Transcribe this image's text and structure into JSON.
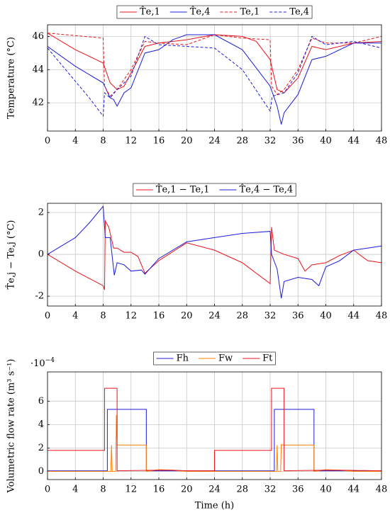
{
  "chart_data": [
    {
      "type": "line",
      "ylabel": "Temperature (°C)",
      "grid": true,
      "xlim": [
        0,
        48
      ],
      "xticks": [
        0,
        4,
        8,
        12,
        16,
        20,
        24,
        28,
        32,
        36,
        40,
        44,
        48
      ],
      "ylim": [
        40.3,
        46.7
      ],
      "yticks": [
        42,
        44,
        46
      ],
      "series": [
        {
          "name": "T̂e,1",
          "color": "#e8141c",
          "linestyle": "solid",
          "x": [
            0,
            4,
            8,
            9,
            10,
            11,
            12,
            14,
            16,
            20,
            24,
            28,
            30,
            32,
            33,
            34,
            36,
            38,
            40,
            44,
            48
          ],
          "values": [
            46.2,
            45.2,
            44.4,
            43.2,
            42.8,
            43.0,
            43.8,
            45.4,
            45.6,
            45.8,
            46.1,
            46.0,
            45.7,
            44.6,
            42.8,
            42.6,
            43.5,
            45.4,
            45.2,
            45.6,
            45.7
          ]
        },
        {
          "name": "T̂e,4",
          "color": "#1c1cdc",
          "linestyle": "solid",
          "x": [
            0,
            4,
            8,
            9,
            9.5,
            10,
            11,
            12,
            14,
            16,
            18,
            20,
            24,
            28,
            32,
            33,
            33.6,
            34,
            36,
            38,
            40,
            44,
            48
          ],
          "values": [
            45.4,
            44.2,
            43.2,
            42.3,
            42.2,
            41.8,
            42.6,
            42.9,
            45.0,
            45.2,
            45.8,
            46.1,
            46.1,
            45.2,
            43.0,
            41.8,
            40.7,
            41.4,
            42.5,
            44.6,
            44.8,
            45.6,
            45.6
          ]
        },
        {
          "name": "Te,1",
          "color": "#e8141c",
          "linestyle": "dashed",
          "x": [
            0,
            8,
            8.2,
            9,
            10,
            12,
            14,
            16,
            20,
            24,
            28,
            32,
            32.2,
            33,
            34,
            36,
            38,
            40,
            44,
            48
          ],
          "values": [
            46.2,
            45.9,
            43.0,
            42.4,
            42.8,
            44.0,
            45.7,
            45.6,
            45.5,
            46.1,
            45.9,
            45.8,
            43.0,
            42.5,
            42.8,
            44.0,
            45.9,
            45.6,
            45.6,
            46.0
          ]
        },
        {
          "name": "Te,4",
          "color": "#1c1cdc",
          "linestyle": "dashed",
          "x": [
            0,
            4,
            6,
            8,
            8.2,
            9,
            10,
            12,
            14,
            16,
            20,
            24,
            28,
            32,
            32.3,
            34,
            36,
            38,
            40,
            44,
            48
          ],
          "values": [
            45.3,
            43.3,
            42.3,
            41.2,
            42.6,
            42.3,
            42.8,
            43.6,
            46.0,
            45.5,
            45.4,
            45.3,
            44.0,
            41.5,
            42.4,
            42.6,
            43.8,
            46.0,
            45.5,
            45.7,
            45.3
          ]
        }
      ]
    },
    {
      "type": "line",
      "ylabel": "T̂e,j − Te,j (°C)",
      "grid": true,
      "xlim": [
        0,
        48
      ],
      "xticks": [
        0,
        4,
        8,
        12,
        16,
        20,
        24,
        28,
        32,
        36,
        40,
        44,
        48
      ],
      "ylim": [
        -2.47,
        2.44
      ],
      "yticks": [
        -2,
        0,
        2
      ],
      "series": [
        {
          "name": "T̂e,1 − Te,1",
          "color": "#e8141c",
          "linestyle": "solid",
          "x": [
            0,
            4,
            8,
            8.2,
            8.3,
            8.8,
            9.5,
            10,
            11,
            12,
            13,
            14,
            16,
            20,
            24,
            28,
            32,
            32.2,
            32.6,
            34,
            36,
            37,
            38,
            40,
            42,
            44,
            46,
            48
          ],
          "values": [
            0,
            -0.8,
            -1.5,
            -1.7,
            1.6,
            1.3,
            0.3,
            0.3,
            0.1,
            0.1,
            -0.1,
            -0.9,
            -0.3,
            0.55,
            0.2,
            -0.4,
            -1.4,
            1.3,
            0.2,
            0.0,
            -0.2,
            -0.8,
            -0.5,
            -0.4,
            -0.05,
            0.2,
            -0.3,
            -0.4
          ]
        },
        {
          "name": "T̂e,4 − Te,4",
          "color": "#1c1cdc",
          "linestyle": "solid",
          "x": [
            0,
            4,
            6,
            8,
            8.3,
            9,
            9.6,
            10,
            11,
            12,
            13.5,
            14,
            16,
            20,
            24,
            28,
            32,
            32.2,
            33,
            33.6,
            34,
            36,
            38,
            39,
            40,
            42,
            44,
            46,
            48
          ],
          "values": [
            0,
            0.8,
            1.5,
            2.3,
            0.8,
            0.8,
            -1.0,
            -0.4,
            -0.5,
            -0.8,
            -0.75,
            -0.95,
            -0.2,
            0.6,
            0.8,
            1.0,
            1.1,
            0.0,
            -0.7,
            -2.1,
            -1.3,
            -1.1,
            -1.2,
            -1.5,
            -0.6,
            -0.3,
            0.2,
            0.3,
            0.4
          ]
        }
      ]
    },
    {
      "type": "line",
      "ylabel": "Volumetric flow rate (m³ s⁻¹)",
      "xlabel": "Time (h)",
      "grid": true,
      "y_multiplier": "·10",
      "y_exponent": "−4",
      "xlim": [
        0,
        48
      ],
      "xticks": [
        0,
        4,
        8,
        12,
        16,
        20,
        24,
        28,
        32,
        36,
        40,
        44,
        48
      ],
      "ylim": [
        -0.7,
        8.5
      ],
      "yticks": [
        0,
        2,
        4,
        6
      ],
      "series": [
        {
          "name": "Fh",
          "color": "#1c1cdc",
          "linestyle": "solid",
          "x": [
            0,
            8.6,
            8.6,
            14.2,
            14.2,
            32.6,
            32.6,
            38.3,
            38.3,
            48
          ],
          "values": [
            0.05,
            0.05,
            5.3,
            5.3,
            0.05,
            0.05,
            5.3,
            5.3,
            0.05,
            0.05
          ]
        },
        {
          "name": "Fw",
          "color": "#ff8000",
          "linestyle": "solid",
          "x": [
            0,
            9.1,
            9.2,
            9.3,
            9.8,
            9.9,
            10.0,
            14.2,
            14.2,
            16,
            18,
            20,
            32.9,
            33.0,
            33.1,
            33.5,
            33.6,
            33.7,
            38.3,
            38.3,
            40,
            42,
            44,
            48
          ],
          "values": [
            0,
            0,
            2.25,
            0,
            0,
            4.8,
            2.25,
            2.25,
            0,
            0.15,
            0.1,
            0,
            0,
            2.25,
            0,
            0,
            2.3,
            2.25,
            2.25,
            0,
            0.15,
            0.1,
            0,
            0
          ]
        },
        {
          "name": "Ft",
          "color": "#e8141c",
          "linestyle": "solid",
          "x": [
            0,
            8.2,
            8.2,
            10.0,
            10.0,
            16,
            18,
            20,
            24,
            24,
            32.2,
            32.2,
            34.0,
            34.0,
            40,
            42,
            48
          ],
          "values": [
            1.8,
            1.8,
            7.1,
            7.1,
            0.05,
            0.1,
            0.1,
            0.05,
            0.05,
            1.8,
            1.8,
            7.1,
            7.1,
            0.05,
            0.1,
            0.1,
            0.05
          ]
        }
      ]
    }
  ]
}
